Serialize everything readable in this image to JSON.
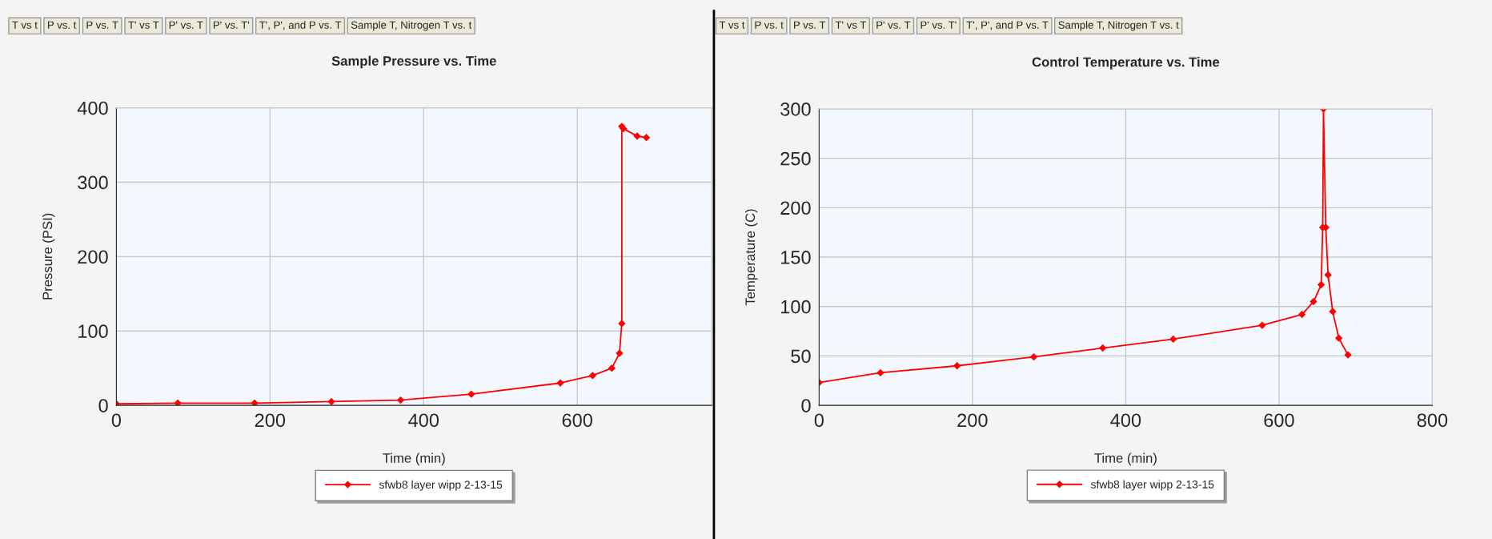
{
  "chart_data": [
    {
      "type": "line",
      "title": "Sample Pressure vs. Time",
      "xlabel": "Time (min)",
      "ylabel": "Pressure (PSI)",
      "annotations": [
        "T vs t",
        "P vs. t",
        "P vs. T",
        "T' vs T",
        "P' vs. T",
        "P' vs. T'",
        "T', P', and P vs. T",
        "Sample T, Nitrogen T vs. t"
      ],
      "xlim": [
        0,
        775
      ],
      "xticks": [
        0,
        200,
        400,
        600
      ],
      "ylim": [
        0,
        400
      ],
      "yticks": [
        0,
        100,
        200,
        300,
        400
      ],
      "grid": true,
      "legend": "bottom",
      "marker": "diamond",
      "line_style": "solid",
      "series": [
        {
          "name": "sfwb8 layer wipp 2-13-15",
          "color": "#ff0000",
          "x": [
            0,
            80,
            180,
            280,
            370,
            462,
            578,
            620,
            645,
            655,
            658,
            658,
            660,
            678,
            690
          ],
          "values": [
            2,
            3,
            3,
            5,
            7,
            15,
            30,
            40,
            50,
            70,
            110,
            375,
            372,
            362,
            360
          ]
        }
      ]
    },
    {
      "type": "line",
      "title": "Control Temperature vs. Time",
      "xlabel": "Time (min)",
      "ylabel": "Temperature (C)",
      "annotations": [
        "T vs t",
        "P vs. t",
        "P vs. T",
        "T' vs T",
        "P' vs. T",
        "P' vs. T'",
        "T', P', and P vs. T",
        "Sample T, Nitrogen T vs. t"
      ],
      "xlim": [
        0,
        800
      ],
      "xticks": [
        0,
        200,
        400,
        600,
        800
      ],
      "ylim": [
        0,
        300
      ],
      "yticks": [
        0,
        50,
        100,
        150,
        200,
        250,
        300
      ],
      "grid": true,
      "legend": "bottom",
      "marker": "diamond",
      "line_style": "solid",
      "series": [
        {
          "name": "sfwb8 layer wipp 2-13-15",
          "color": "#ff0000",
          "x": [
            0,
            80,
            180,
            280,
            370,
            462,
            578,
            630,
            645,
            655,
            657,
            658,
            661,
            664,
            670,
            678,
            690
          ],
          "values": [
            23,
            33,
            40,
            49,
            58,
            67,
            81,
            92,
            105,
            122,
            180,
            300,
            180,
            132,
            95,
            68,
            51
          ]
        }
      ]
    }
  ]
}
